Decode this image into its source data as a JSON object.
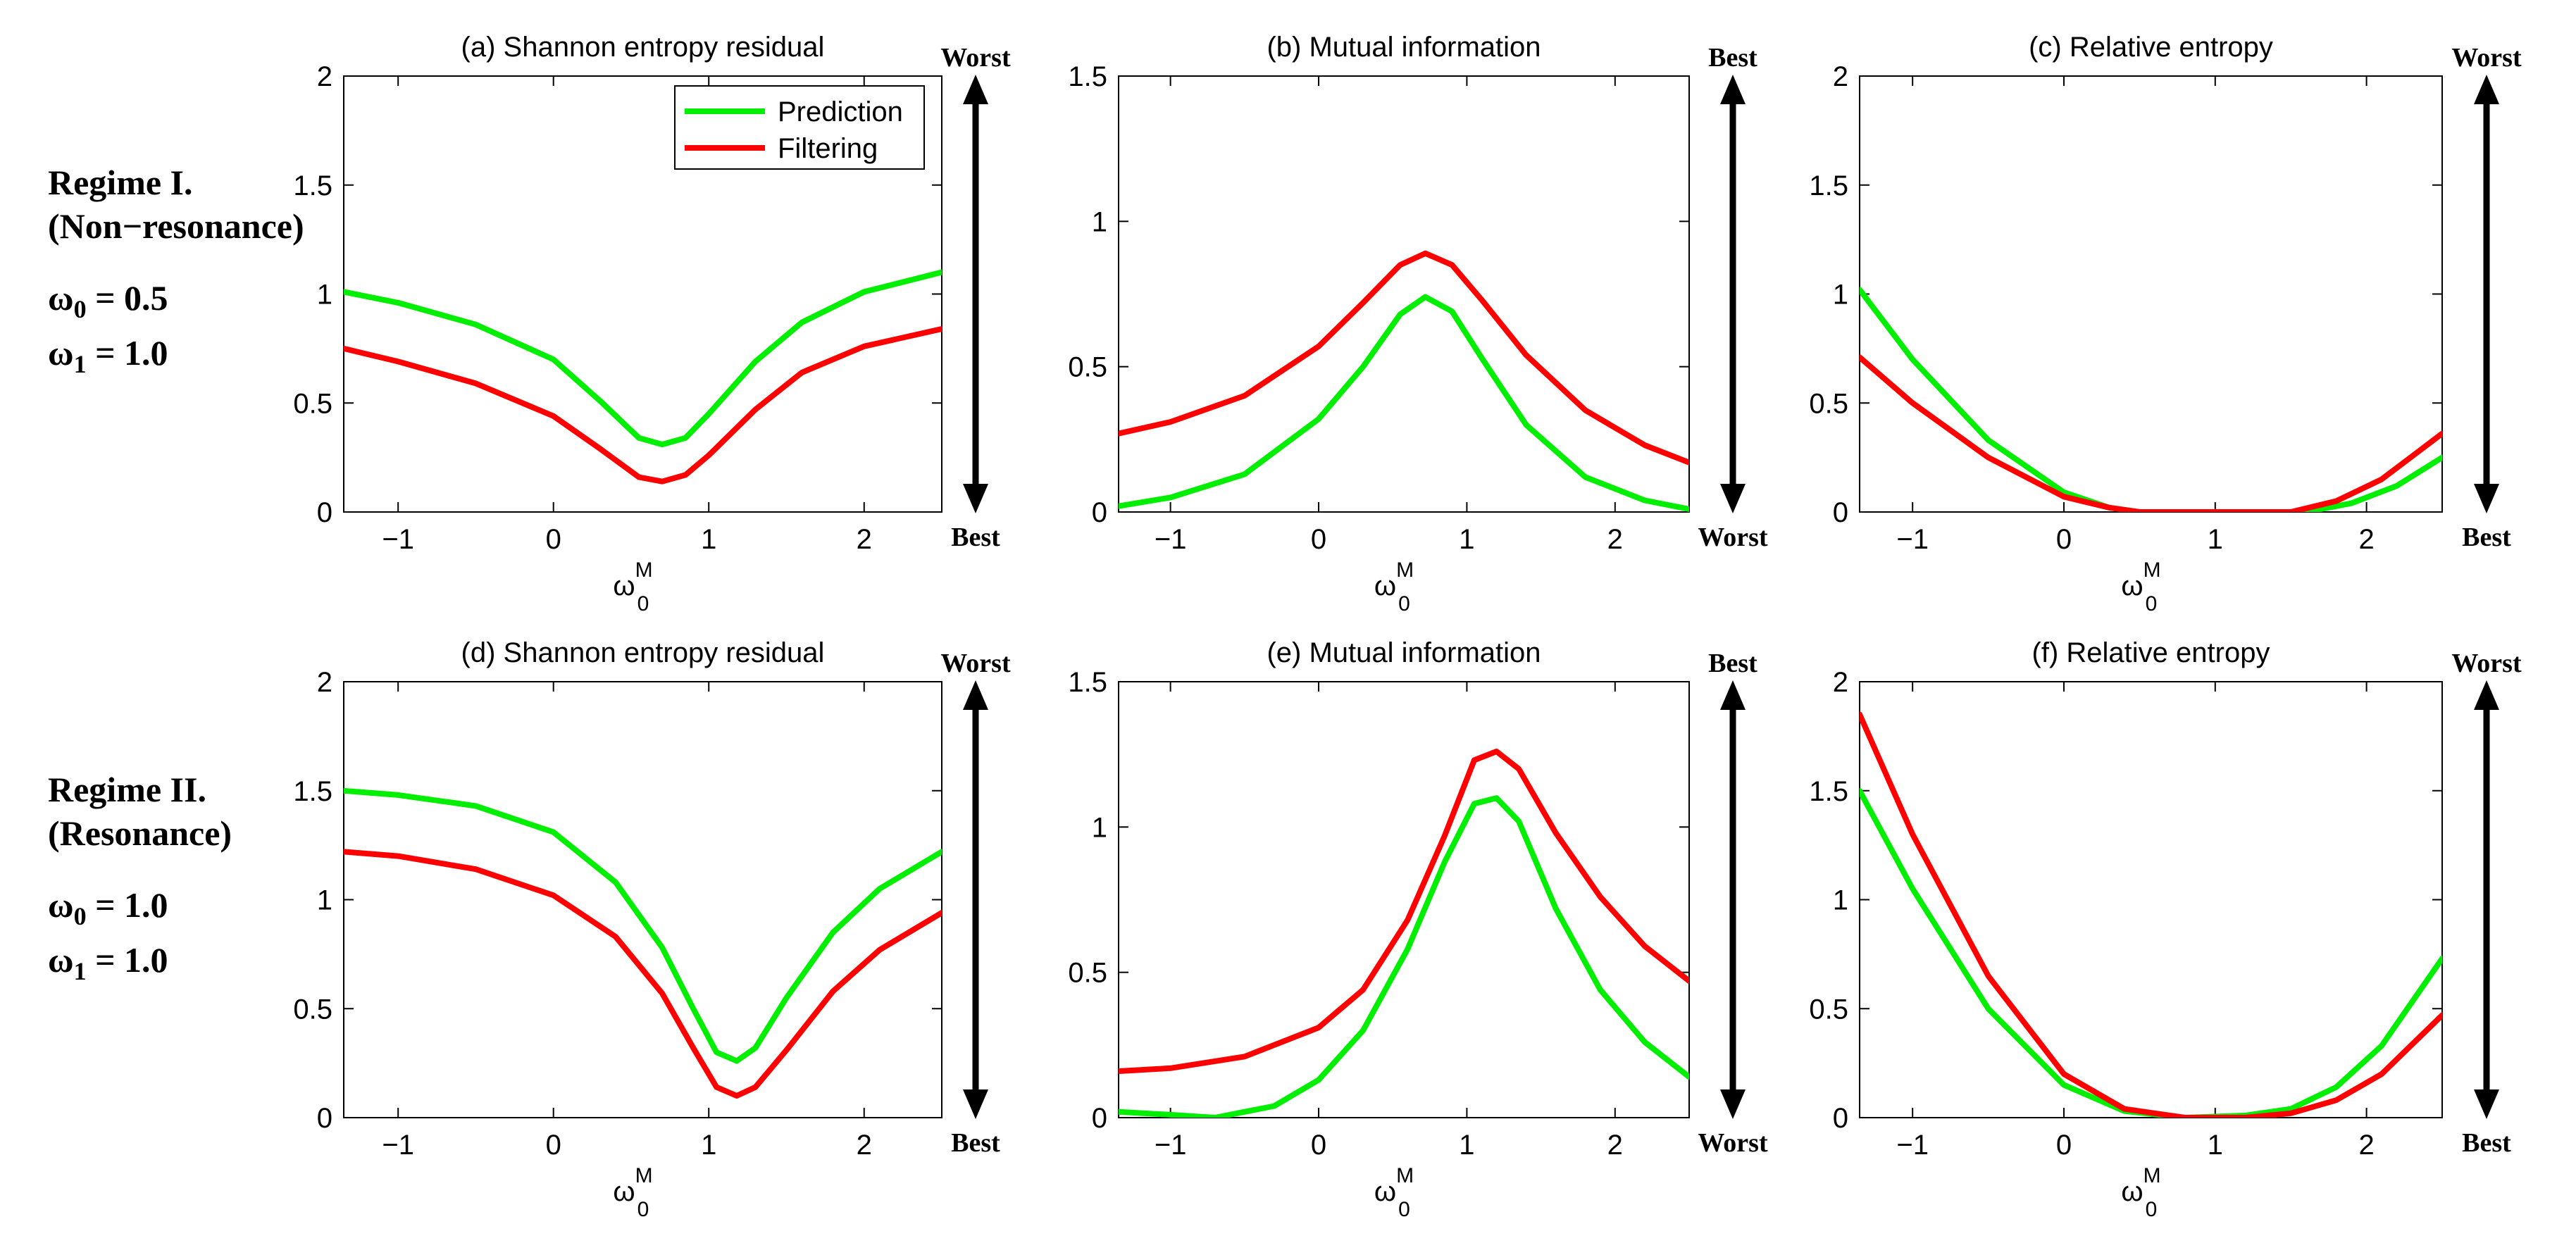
{
  "figure": {
    "legend": {
      "entries": [
        {
          "name": "Prediction",
          "color": "#00ee00"
        },
        {
          "name": "Filtering",
          "color": "#ff0000"
        }
      ]
    },
    "xlabel": "ω",
    "xlabel_sup": "M",
    "xlabel_sub": "0",
    "arrow_labels": {
      "worst": "Worst",
      "best": "Best"
    }
  },
  "regimes": [
    {
      "title": "Regime I.",
      "subtitle": "(Non−resonance)",
      "params": [
        {
          "sym": "ω",
          "sub": "0",
          "val": " = 0.5"
        },
        {
          "sym": "ω",
          "sub": "1",
          "val": " = 1.0"
        }
      ]
    },
    {
      "title": "Regime II.",
      "subtitle": "(Resonance)",
      "params": [
        {
          "sym": "ω",
          "sub": "0",
          "val": " = 1.0"
        },
        {
          "sym": "ω",
          "sub": "1",
          "val": " = 1.0"
        }
      ]
    }
  ],
  "chart_data": [
    {
      "id": "a",
      "type": "line",
      "title": "(a)  Shannon entropy residual",
      "xlim": [
        -1.35,
        2.5
      ],
      "ylim": [
        0,
        2
      ],
      "xticks": [
        -1,
        0,
        1,
        2
      ],
      "yticks": [
        0,
        0.5,
        1,
        1.5,
        2
      ],
      "ytick_labels": [
        "0",
        "0.5",
        "1",
        "1.5",
        "2"
      ],
      "arrow": {
        "top": "Worst",
        "bottom": "Best"
      },
      "legend": true,
      "series": [
        {
          "name": "Prediction",
          "color": "#00ee00",
          "points": [
            [
              -1.35,
              1.01
            ],
            [
              -1,
              0.96
            ],
            [
              -0.5,
              0.86
            ],
            [
              0,
              0.7
            ],
            [
              0.3,
              0.51
            ],
            [
              0.55,
              0.34
            ],
            [
              0.7,
              0.31
            ],
            [
              0.85,
              0.34
            ],
            [
              1.0,
              0.45
            ],
            [
              1.3,
              0.69
            ],
            [
              1.6,
              0.87
            ],
            [
              2.0,
              1.01
            ],
            [
              2.5,
              1.1
            ]
          ]
        },
        {
          "name": "Filtering",
          "color": "#ff0000",
          "points": [
            [
              -1.35,
              0.75
            ],
            [
              -1,
              0.69
            ],
            [
              -0.5,
              0.59
            ],
            [
              0,
              0.44
            ],
            [
              0.3,
              0.29
            ],
            [
              0.55,
              0.16
            ],
            [
              0.7,
              0.14
            ],
            [
              0.85,
              0.17
            ],
            [
              1.0,
              0.26
            ],
            [
              1.3,
              0.47
            ],
            [
              1.6,
              0.64
            ],
            [
              2.0,
              0.76
            ],
            [
              2.5,
              0.84
            ]
          ]
        }
      ]
    },
    {
      "id": "b",
      "type": "line",
      "title": "(b)  Mutual information",
      "xlim": [
        -1.35,
        2.5
      ],
      "ylim": [
        0,
        1.5
      ],
      "xticks": [
        -1,
        0,
        1,
        2
      ],
      "yticks": [
        0,
        0.5,
        1,
        1.5
      ],
      "ytick_labels": [
        "0",
        "0.5",
        "1",
        "1.5"
      ],
      "arrow": {
        "top": "Best",
        "bottom": "Worst"
      },
      "legend": false,
      "series": [
        {
          "name": "Prediction",
          "color": "#00ee00",
          "points": [
            [
              -1.35,
              0.02
            ],
            [
              -1,
              0.05
            ],
            [
              -0.5,
              0.13
            ],
            [
              0,
              0.32
            ],
            [
              0.3,
              0.5
            ],
            [
              0.55,
              0.68
            ],
            [
              0.72,
              0.74
            ],
            [
              0.9,
              0.69
            ],
            [
              1.1,
              0.53
            ],
            [
              1.4,
              0.3
            ],
            [
              1.8,
              0.12
            ],
            [
              2.2,
              0.04
            ],
            [
              2.5,
              0.01
            ]
          ]
        },
        {
          "name": "Filtering",
          "color": "#ff0000",
          "points": [
            [
              -1.35,
              0.27
            ],
            [
              -1,
              0.31
            ],
            [
              -0.5,
              0.4
            ],
            [
              0,
              0.57
            ],
            [
              0.3,
              0.72
            ],
            [
              0.55,
              0.85
            ],
            [
              0.72,
              0.89
            ],
            [
              0.9,
              0.85
            ],
            [
              1.1,
              0.73
            ],
            [
              1.4,
              0.54
            ],
            [
              1.8,
              0.35
            ],
            [
              2.2,
              0.23
            ],
            [
              2.5,
              0.17
            ]
          ]
        }
      ]
    },
    {
      "id": "c",
      "type": "line",
      "title": "(c)  Relative entropy",
      "xlim": [
        -1.35,
        2.5
      ],
      "ylim": [
        0,
        2
      ],
      "xticks": [
        -1,
        0,
        1,
        2
      ],
      "yticks": [
        0,
        0.5,
        1,
        1.5,
        2
      ],
      "ytick_labels": [
        "0",
        "0.5",
        "1",
        "1.5",
        "2"
      ],
      "arrow": {
        "top": "Worst",
        "bottom": "Best"
      },
      "legend": false,
      "series": [
        {
          "name": "Prediction",
          "color": "#00ee00",
          "points": [
            [
              -1.35,
              1.02
            ],
            [
              -1,
              0.7
            ],
            [
              -0.5,
              0.33
            ],
            [
              0,
              0.09
            ],
            [
              0.3,
              0.02
            ],
            [
              0.5,
              0.0
            ],
            [
              1.0,
              0.0
            ],
            [
              1.6,
              0.0
            ],
            [
              1.9,
              0.04
            ],
            [
              2.2,
              0.12
            ],
            [
              2.5,
              0.25
            ]
          ]
        },
        {
          "name": "Filtering",
          "color": "#ff0000",
          "points": [
            [
              -1.35,
              0.71
            ],
            [
              -1,
              0.5
            ],
            [
              -0.5,
              0.25
            ],
            [
              0,
              0.07
            ],
            [
              0.3,
              0.02
            ],
            [
              0.5,
              0.0
            ],
            [
              1.0,
              0.0
            ],
            [
              1.5,
              0.0
            ],
            [
              1.8,
              0.05
            ],
            [
              2.1,
              0.15
            ],
            [
              2.5,
              0.36
            ]
          ]
        }
      ]
    },
    {
      "id": "d",
      "type": "line",
      "title": "(d)  Shannon entropy residual",
      "xlim": [
        -1.35,
        2.5
      ],
      "ylim": [
        0,
        2
      ],
      "xticks": [
        -1,
        0,
        1,
        2
      ],
      "yticks": [
        0,
        0.5,
        1,
        1.5,
        2
      ],
      "ytick_labels": [
        "0",
        "0.5",
        "1",
        "1.5",
        "2"
      ],
      "arrow": {
        "top": "Worst",
        "bottom": "Best"
      },
      "legend": false,
      "series": [
        {
          "name": "Prediction",
          "color": "#00ee00",
          "points": [
            [
              -1.35,
              1.5
            ],
            [
              -1,
              1.48
            ],
            [
              -0.5,
              1.43
            ],
            [
              0,
              1.31
            ],
            [
              0.4,
              1.08
            ],
            [
              0.7,
              0.78
            ],
            [
              0.9,
              0.5
            ],
            [
              1.05,
              0.3
            ],
            [
              1.18,
              0.26
            ],
            [
              1.3,
              0.32
            ],
            [
              1.5,
              0.55
            ],
            [
              1.8,
              0.85
            ],
            [
              2.1,
              1.05
            ],
            [
              2.5,
              1.22
            ]
          ]
        },
        {
          "name": "Filtering",
          "color": "#ff0000",
          "points": [
            [
              -1.35,
              1.22
            ],
            [
              -1,
              1.2
            ],
            [
              -0.5,
              1.14
            ],
            [
              0,
              1.02
            ],
            [
              0.4,
              0.83
            ],
            [
              0.7,
              0.57
            ],
            [
              0.9,
              0.32
            ],
            [
              1.05,
              0.14
            ],
            [
              1.18,
              0.1
            ],
            [
              1.3,
              0.14
            ],
            [
              1.5,
              0.31
            ],
            [
              1.8,
              0.58
            ],
            [
              2.1,
              0.77
            ],
            [
              2.5,
              0.94
            ]
          ]
        }
      ]
    },
    {
      "id": "e",
      "type": "line",
      "title": "(e)  Mutual information",
      "xlim": [
        -1.35,
        2.5
      ],
      "ylim": [
        0,
        1.5
      ],
      "xticks": [
        -1,
        0,
        1,
        2
      ],
      "yticks": [
        0,
        0.5,
        1,
        1.5
      ],
      "ytick_labels": [
        "0",
        "0.5",
        "1",
        "1.5"
      ],
      "arrow": {
        "top": "Best",
        "bottom": "Worst"
      },
      "legend": false,
      "series": [
        {
          "name": "Prediction",
          "color": "#00ee00",
          "points": [
            [
              -1.35,
              0.02
            ],
            [
              -1,
              0.01
            ],
            [
              -0.7,
              0.0
            ],
            [
              -0.3,
              0.04
            ],
            [
              0,
              0.13
            ],
            [
              0.3,
              0.3
            ],
            [
              0.6,
              0.58
            ],
            [
              0.85,
              0.88
            ],
            [
              1.05,
              1.08
            ],
            [
              1.2,
              1.1
            ],
            [
              1.35,
              1.02
            ],
            [
              1.6,
              0.72
            ],
            [
              1.9,
              0.44
            ],
            [
              2.2,
              0.26
            ],
            [
              2.5,
              0.14
            ]
          ]
        },
        {
          "name": "Filtering",
          "color": "#ff0000",
          "points": [
            [
              -1.35,
              0.16
            ],
            [
              -1,
              0.17
            ],
            [
              -0.5,
              0.21
            ],
            [
              0,
              0.31
            ],
            [
              0.3,
              0.44
            ],
            [
              0.6,
              0.68
            ],
            [
              0.85,
              0.97
            ],
            [
              1.05,
              1.23
            ],
            [
              1.2,
              1.26
            ],
            [
              1.35,
              1.2
            ],
            [
              1.6,
              0.98
            ],
            [
              1.9,
              0.76
            ],
            [
              2.2,
              0.59
            ],
            [
              2.5,
              0.47
            ]
          ]
        }
      ]
    },
    {
      "id": "f",
      "type": "line",
      "title": "(f)  Relative entropy",
      "xlim": [
        -1.35,
        2.5
      ],
      "ylim": [
        0,
        2
      ],
      "xticks": [
        -1,
        0,
        1,
        2
      ],
      "yticks": [
        0,
        0.5,
        1,
        1.5,
        2
      ],
      "ytick_labels": [
        "0",
        "0.5",
        "1",
        "1.5",
        "2"
      ],
      "arrow": {
        "top": "Worst",
        "bottom": "Best"
      },
      "legend": false,
      "series": [
        {
          "name": "Prediction",
          "color": "#00ee00",
          "points": [
            [
              -1.35,
              1.5
            ],
            [
              -1,
              1.05
            ],
            [
              -0.5,
              0.5
            ],
            [
              0,
              0.15
            ],
            [
              0.4,
              0.03
            ],
            [
              0.8,
              0.0
            ],
            [
              1.2,
              0.01
            ],
            [
              1.5,
              0.04
            ],
            [
              1.8,
              0.14
            ],
            [
              2.1,
              0.33
            ],
            [
              2.5,
              0.73
            ]
          ]
        },
        {
          "name": "Filtering",
          "color": "#ff0000",
          "points": [
            [
              -1.35,
              1.85
            ],
            [
              -1,
              1.3
            ],
            [
              -0.5,
              0.65
            ],
            [
              0,
              0.2
            ],
            [
              0.4,
              0.04
            ],
            [
              0.8,
              0.0
            ],
            [
              1.2,
              0.0
            ],
            [
              1.5,
              0.02
            ],
            [
              1.8,
              0.08
            ],
            [
              2.1,
              0.2
            ],
            [
              2.5,
              0.47
            ]
          ]
        }
      ]
    }
  ]
}
